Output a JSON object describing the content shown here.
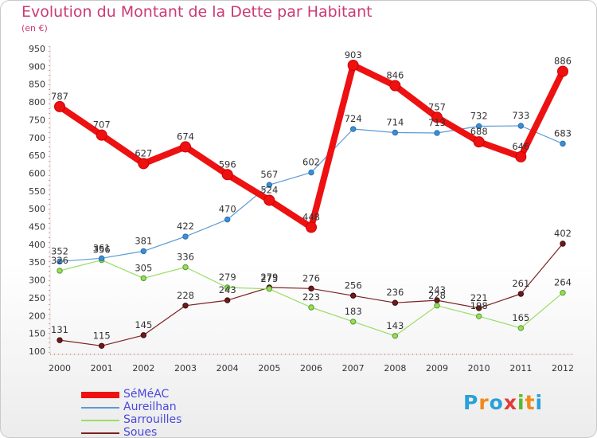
{
  "title": "Evolution du Montant de la Dette par Habitant",
  "subtitle": "(en €)",
  "logo": {
    "text": "Proxiti",
    "letters": [
      "P",
      "r",
      "o",
      "x",
      "i",
      "t",
      "i"
    ],
    "colors": [
      "#2aa0d8",
      "#f08a1c",
      "#2aa0d8",
      "#e23a3a",
      "#5cb82e",
      "#f08a1c",
      "#2aa0d8"
    ]
  },
  "chart_data": {
    "type": "line",
    "x": [
      "2000",
      "2001",
      "2002",
      "2003",
      "2004",
      "2005",
      "2006",
      "2007",
      "2008",
      "2009",
      "2010",
      "2011",
      "2012"
    ],
    "ylim": [
      100,
      950
    ],
    "yticks": [
      100,
      150,
      200,
      250,
      300,
      350,
      400,
      450,
      500,
      550,
      600,
      650,
      700,
      750,
      800,
      850,
      900,
      950
    ],
    "grid": false,
    "legend_position": "bottom-left",
    "series": [
      {
        "name": "SéMéAC",
        "color": "#ee1111",
        "values": [
          787,
          707,
          627,
          674,
          596,
          524,
          448,
          903,
          846,
          757,
          688,
          646,
          886
        ]
      },
      {
        "name": "Aureilhan",
        "color": "#5b9bd5",
        "values": [
          352,
          361,
          381,
          422,
          470,
          567,
          602,
          724,
          714,
          713,
          732,
          733,
          683
        ]
      },
      {
        "name": "Sarrouilles",
        "color": "#99dd66",
        "values": [
          326,
          356,
          305,
          336,
          279,
          275,
          223,
          183,
          143,
          228,
          198,
          165,
          264
        ]
      },
      {
        "name": "Soues",
        "color": "#7a2222",
        "values": [
          131,
          115,
          145,
          228,
          243,
          279,
          276,
          256,
          236,
          243,
          221,
          261,
          402
        ]
      }
    ]
  }
}
